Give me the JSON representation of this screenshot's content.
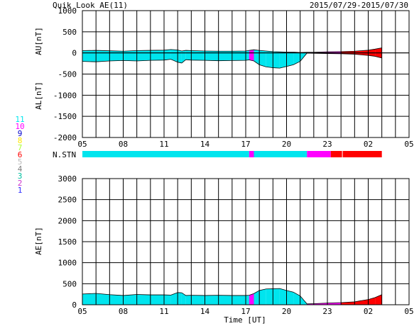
{
  "header": {
    "title": "Quik Look AE(11)",
    "date_range": "2015/07/29-2015/07/30"
  },
  "colors": {
    "cyan": "#00e5ee",
    "magenta": "#ff00ff",
    "red": "#ff0000",
    "grid": "#000000"
  },
  "station_legend": {
    "label": "N.STN",
    "entries": [
      {
        "text": "11",
        "color": "#00e5ee"
      },
      {
        "text": "10",
        "color": "#ff00ff"
      },
      {
        "text": "9",
        "color": "#0000cc"
      },
      {
        "text": "8",
        "color": "#ffe600"
      },
      {
        "text": "7",
        "color": "#aaff33"
      },
      {
        "text": "6",
        "color": "#ff0000"
      },
      {
        "text": "5",
        "color": "#bbbbbb"
      },
      {
        "text": "4",
        "color": "#7f7f7f"
      },
      {
        "text": "3",
        "color": "#00c0a0"
      },
      {
        "text": "2",
        "color": "#cc33cc"
      },
      {
        "text": "1",
        "color": "#3333ff"
      }
    ],
    "bar_segments": [
      {
        "from": 5.0,
        "to": 17.25,
        "count": 11
      },
      {
        "from": 17.25,
        "to": 17.6,
        "count": 10
      },
      {
        "from": 17.6,
        "to": 21.5,
        "count": 11
      },
      {
        "from": 21.5,
        "to": 23.25,
        "count": 10
      },
      {
        "from": 23.25,
        "to": 24.1,
        "count": 6
      },
      {
        "from": 24.1,
        "to": 27.0,
        "count": 6
      }
    ]
  },
  "chart_data": [
    {
      "type": "area",
      "ylabel_upper": "AU[nT]",
      "ylabel_lower": "AL[nT]",
      "ylim": [
        -2000,
        1000
      ],
      "yticks": [
        1000,
        500,
        0,
        -500,
        -1000,
        -1500,
        -2000
      ],
      "xlim": [
        5,
        29
      ],
      "xticks": [
        "05",
        "08",
        "11",
        "14",
        "17",
        "20",
        "23",
        "02",
        "05"
      ],
      "grid": true,
      "x_hours": [
        5.0,
        6.0,
        7.0,
        8.0,
        9.0,
        10.0,
        11.0,
        11.5,
        12.0,
        12.3,
        12.6,
        13.0,
        14.0,
        15.0,
        16.0,
        17.0,
        17.25,
        17.6,
        18.0,
        18.5,
        19.0,
        19.5,
        20.0,
        20.5,
        21.0,
        21.5,
        22.0,
        23.0,
        24.0,
        25.0,
        26.0,
        26.5,
        27.0
      ],
      "au": [
        55,
        60,
        50,
        40,
        55,
        60,
        65,
        80,
        70,
        45,
        60,
        55,
        45,
        40,
        40,
        45,
        60,
        75,
        60,
        45,
        30,
        25,
        20,
        20,
        10,
        15,
        15,
        25,
        30,
        40,
        65,
        90,
        120
      ],
      "al": [
        -200,
        -210,
        -190,
        -180,
        -190,
        -175,
        -170,
        -150,
        -220,
        -240,
        -160,
        -170,
        -175,
        -185,
        -180,
        -175,
        -165,
        -190,
        -280,
        -330,
        -350,
        -360,
        -320,
        -280,
        -200,
        -5,
        -10,
        -15,
        -20,
        -30,
        -60,
        -80,
        -120
      ],
      "station_count_by_segment": [
        11,
        11,
        11,
        11,
        11,
        11,
        11,
        11,
        11,
        11,
        11,
        11,
        11,
        11,
        11,
        11,
        10,
        11,
        11,
        11,
        11,
        11,
        11,
        11,
        11,
        10,
        10,
        10,
        6,
        6,
        6,
        6,
        6
      ]
    },
    {
      "type": "area",
      "ylabel": "AE[nT]",
      "xlabel": "Time [UT]",
      "ylim": [
        0,
        3000
      ],
      "yticks": [
        3000,
        2500,
        2000,
        1500,
        1000,
        500,
        0
      ],
      "xlim": [
        5,
        29
      ],
      "xticks": [
        "05",
        "08",
        "11",
        "14",
        "17",
        "20",
        "23",
        "02",
        "05"
      ],
      "grid": true,
      "x_hours": [
        5.0,
        6.0,
        7.0,
        8.0,
        9.0,
        10.0,
        11.0,
        11.5,
        12.0,
        12.3,
        12.6,
        13.0,
        14.0,
        15.0,
        16.0,
        17.0,
        17.25,
        17.6,
        18.0,
        18.5,
        19.0,
        19.5,
        20.0,
        20.5,
        21.0,
        21.5,
        22.0,
        23.0,
        24.0,
        25.0,
        26.0,
        26.5,
        27.0
      ],
      "ae": [
        255,
        270,
        240,
        220,
        245,
        235,
        235,
        230,
        290,
        285,
        220,
        225,
        220,
        225,
        220,
        220,
        225,
        265,
        340,
        375,
        380,
        385,
        340,
        300,
        210,
        20,
        25,
        40,
        50,
        70,
        125,
        170,
        240
      ],
      "station_count_by_segment": [
        11,
        11,
        11,
        11,
        11,
        11,
        11,
        11,
        11,
        11,
        11,
        11,
        11,
        11,
        11,
        11,
        10,
        11,
        11,
        11,
        11,
        11,
        11,
        11,
        11,
        10,
        10,
        10,
        6,
        6,
        6,
        6,
        6
      ]
    }
  ]
}
